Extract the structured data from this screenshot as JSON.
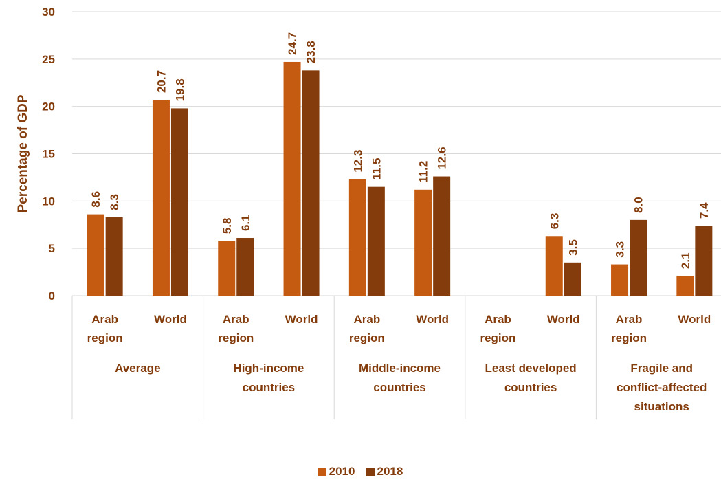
{
  "chart_data": {
    "type": "bar",
    "ylabel": "Percentage of GDP",
    "ylim": [
      0,
      30
    ],
    "yticks": [
      0,
      5,
      10,
      15,
      20,
      25,
      30
    ],
    "groups": [
      {
        "label": "Average",
        "categories": [
          {
            "label": "Arab region",
            "values": [
              8.6,
              8.3
            ]
          },
          {
            "label": "World",
            "values": [
              20.7,
              19.8
            ]
          }
        ]
      },
      {
        "label": "High-income countries",
        "categories": [
          {
            "label": "Arab region",
            "values": [
              5.8,
              6.1
            ]
          },
          {
            "label": "World",
            "values": [
              24.7,
              23.8
            ]
          }
        ]
      },
      {
        "label": "Middle-income countries",
        "categories": [
          {
            "label": "Arab region",
            "values": [
              12.3,
              11.5
            ]
          },
          {
            "label": "World",
            "values": [
              11.2,
              12.6
            ]
          }
        ]
      },
      {
        "label": "Least developed countries",
        "categories": [
          {
            "label": "Arab region",
            "values": [
              null,
              null
            ]
          },
          {
            "label": "World",
            "values": [
              6.3,
              3.5
            ]
          }
        ]
      },
      {
        "label": "Fragile and conflict-affected situations",
        "categories": [
          {
            "label": "Arab region",
            "values": [
              3.3,
              8.0
            ]
          },
          {
            "label": "World",
            "values": [
              2.1,
              7.4
            ]
          }
        ]
      }
    ],
    "series": [
      {
        "name": "2010",
        "color": "#C55A11"
      },
      {
        "name": "2018",
        "color": "#843C0C"
      }
    ],
    "legend_position": "bottom",
    "grid": true
  }
}
